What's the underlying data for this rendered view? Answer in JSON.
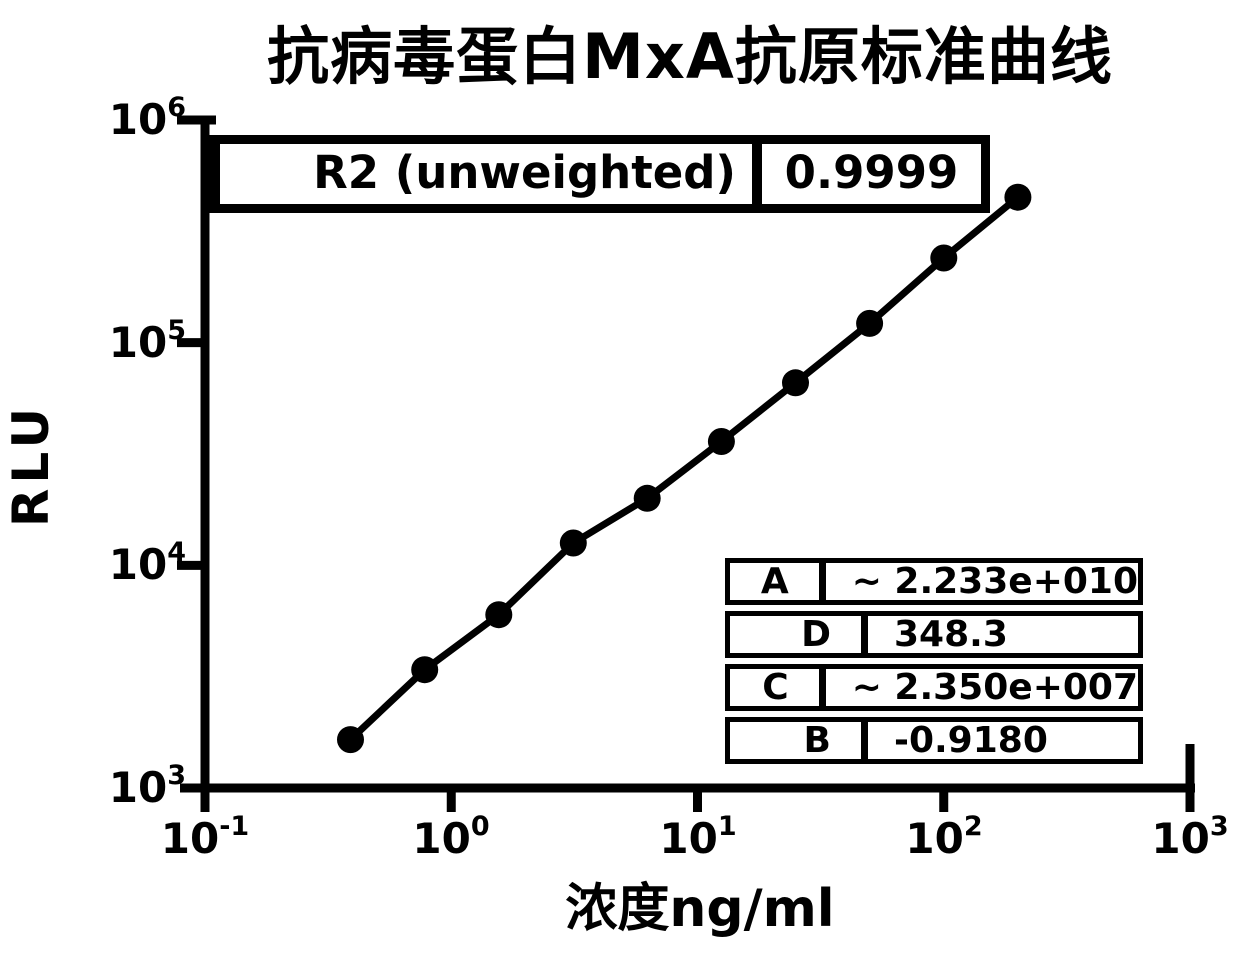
{
  "title": "抗病毒蛋白MxA抗原标准曲线",
  "r2_box": {
    "label": "R2 (unweighted)",
    "value": "0.9999"
  },
  "param_table": {
    "rows": [
      {
        "label": "A",
        "value": "~ 2.233e+010"
      },
      {
        "label": "D",
        "value": "348.3"
      },
      {
        "label": "C",
        "value": "~ 2.350e+007"
      },
      {
        "label": "B",
        "value": "-0.9180"
      }
    ]
  },
  "chart_data": {
    "type": "line",
    "title": "抗病毒蛋白MxA抗原标准曲线",
    "xlabel": "浓度ng/ml",
    "ylabel": "RLU",
    "x_scale": "log",
    "y_scale": "log",
    "xlim": [
      0.1,
      1000
    ],
    "ylim": [
      1000,
      1000000
    ],
    "tick_base": "10",
    "x_tick_exponents": [
      -1,
      0,
      1,
      2,
      3
    ],
    "y_tick_exponents": [
      3,
      4,
      5,
      6
    ],
    "grid": false,
    "legend": "none",
    "marker": "circle",
    "color": "#000000",
    "series": [
      {
        "name": "MxA standard curve",
        "x": [
          0.39,
          0.78,
          1.56,
          3.13,
          6.25,
          12.5,
          25,
          50,
          100,
          200
        ],
        "y": [
          1650,
          3400,
          6000,
          12600,
          20000,
          36000,
          66000,
          122000,
          240000,
          450000
        ]
      }
    ],
    "fit": {
      "model": "4PL",
      "R2_unweighted": "0.9999",
      "A": "~ 2.233e+010",
      "D": "348.3",
      "C": "~ 2.350e+007",
      "B": "-0.9180"
    }
  }
}
